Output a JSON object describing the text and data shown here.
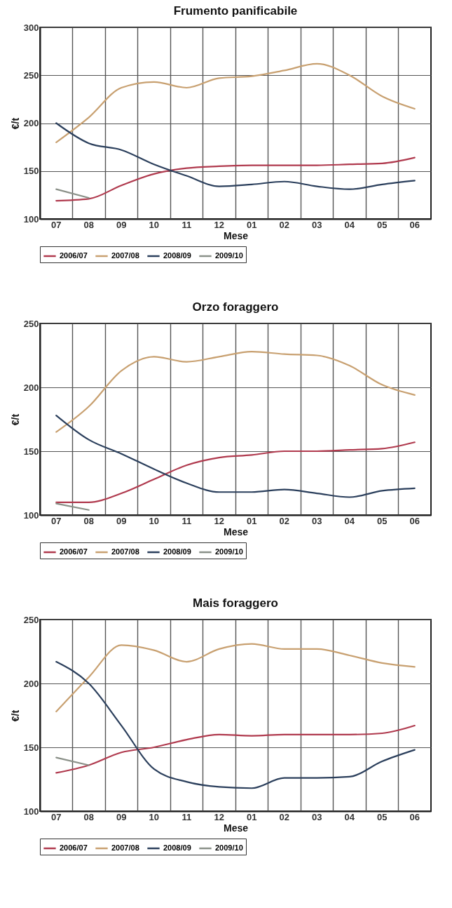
{
  "chart_data": [
    {
      "type": "line",
      "title": "Frumento panificabile",
      "xlabel": "Mese",
      "ylabel": "€/t",
      "categories": [
        "07",
        "08",
        "09",
        "10",
        "11",
        "12",
        "01",
        "02",
        "03",
        "04",
        "05",
        "06"
      ],
      "ylim": [
        100,
        300
      ],
      "yticks": [
        100,
        150,
        200,
        250,
        300
      ],
      "grid": true,
      "legend": "bottom",
      "series": [
        {
          "name": "2006/07",
          "color": "#b03a4e",
          "values": [
            119,
            121,
            135,
            147,
            153,
            155,
            156,
            156,
            156,
            157,
            158,
            164
          ]
        },
        {
          "name": "2007/08",
          "color": "#c8a070",
          "values": [
            180,
            206,
            237,
            243,
            237,
            247,
            249,
            255,
            262,
            250,
            228,
            215
          ]
        },
        {
          "name": "2008/09",
          "color": "#2b3f5c",
          "values": [
            200,
            179,
            172,
            157,
            145,
            134,
            136,
            139,
            134,
            131,
            136,
            140
          ]
        },
        {
          "name": "2009/10",
          "color": "#8a9088",
          "values": [
            131,
            122,
            null,
            null,
            null,
            null,
            null,
            null,
            null,
            null,
            null,
            null
          ]
        }
      ]
    },
    {
      "type": "line",
      "title": "Orzo foraggero",
      "xlabel": "Mese",
      "ylabel": "€/t",
      "categories": [
        "07",
        "08",
        "09",
        "10",
        "11",
        "12",
        "01",
        "02",
        "03",
        "04",
        "05",
        "06"
      ],
      "ylim": [
        100,
        250
      ],
      "yticks": [
        100,
        150,
        200,
        250
      ],
      "grid": true,
      "legend": "bottom",
      "series": [
        {
          "name": "2006/07",
          "color": "#b03a4e",
          "values": [
            110,
            110,
            117,
            128,
            139,
            145,
            147,
            150,
            150,
            151,
            152,
            157
          ]
        },
        {
          "name": "2007/08",
          "color": "#c8a070",
          "values": [
            165,
            185,
            213,
            224,
            220,
            224,
            228,
            226,
            225,
            217,
            202,
            194
          ]
        },
        {
          "name": "2008/09",
          "color": "#2b3f5c",
          "values": [
            178,
            159,
            148,
            136,
            125,
            118,
            118,
            120,
            117,
            114,
            119,
            121
          ]
        },
        {
          "name": "2009/10",
          "color": "#8a9088",
          "values": [
            109,
            104,
            null,
            null,
            null,
            null,
            null,
            null,
            null,
            null,
            null,
            null
          ]
        }
      ]
    },
    {
      "type": "line",
      "title": "Mais foraggero",
      "xlabel": "Mese",
      "ylabel": "€/t",
      "categories": [
        "07",
        "08",
        "09",
        "10",
        "11",
        "12",
        "01",
        "02",
        "03",
        "04",
        "05",
        "06"
      ],
      "ylim": [
        100,
        250
      ],
      "yticks": [
        100,
        150,
        200,
        250
      ],
      "grid": true,
      "legend": "bottom",
      "series": [
        {
          "name": "2006/07",
          "color": "#b03a4e",
          "values": [
            130,
            136,
            146,
            150,
            156,
            160,
            159,
            160,
            160,
            160,
            161,
            167
          ]
        },
        {
          "name": "2007/08",
          "color": "#c8a070",
          "values": [
            178,
            205,
            230,
            226,
            217,
            227,
            231,
            227,
            227,
            222,
            216,
            213
          ]
        },
        {
          "name": "2008/09",
          "color": "#2b3f5c",
          "values": [
            217,
            200,
            167,
            133,
            123,
            119,
            118,
            126,
            126,
            127,
            139,
            148
          ]
        },
        {
          "name": "2009/10",
          "color": "#8a9088",
          "values": [
            142,
            136,
            null,
            null,
            null,
            null,
            null,
            null,
            null,
            null,
            null,
            null
          ]
        }
      ]
    }
  ]
}
